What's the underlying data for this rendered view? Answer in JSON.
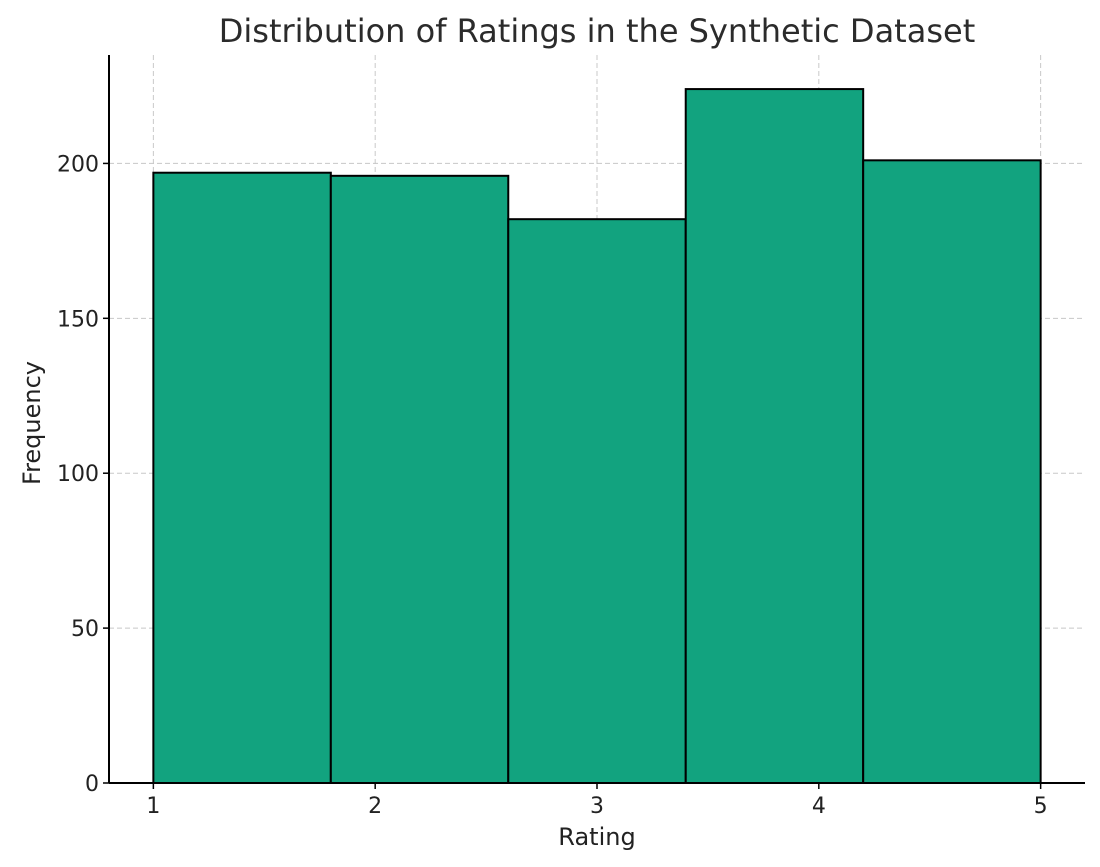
{
  "chart_data": {
    "type": "bar",
    "title": "Distribution of Ratings in the Synthetic Dataset",
    "xlabel": "Rating",
    "ylabel": "Frequency",
    "bins": [
      {
        "start": 1.0,
        "end": 1.8,
        "value": 197
      },
      {
        "start": 1.8,
        "end": 2.6,
        "value": 196
      },
      {
        "start": 2.6,
        "end": 3.4,
        "value": 182
      },
      {
        "start": 3.4,
        "end": 4.2,
        "value": 224
      },
      {
        "start": 4.2,
        "end": 5.0,
        "value": 201
      }
    ],
    "xticks": [
      1,
      2,
      3,
      4,
      5
    ],
    "yticks": [
      0,
      50,
      100,
      150,
      200
    ],
    "xlim": [
      0.8,
      5.2
    ],
    "ylim": [
      0,
      235
    ],
    "grid": true,
    "bar_color": "#12a37f",
    "edge_color": "#000000"
  }
}
